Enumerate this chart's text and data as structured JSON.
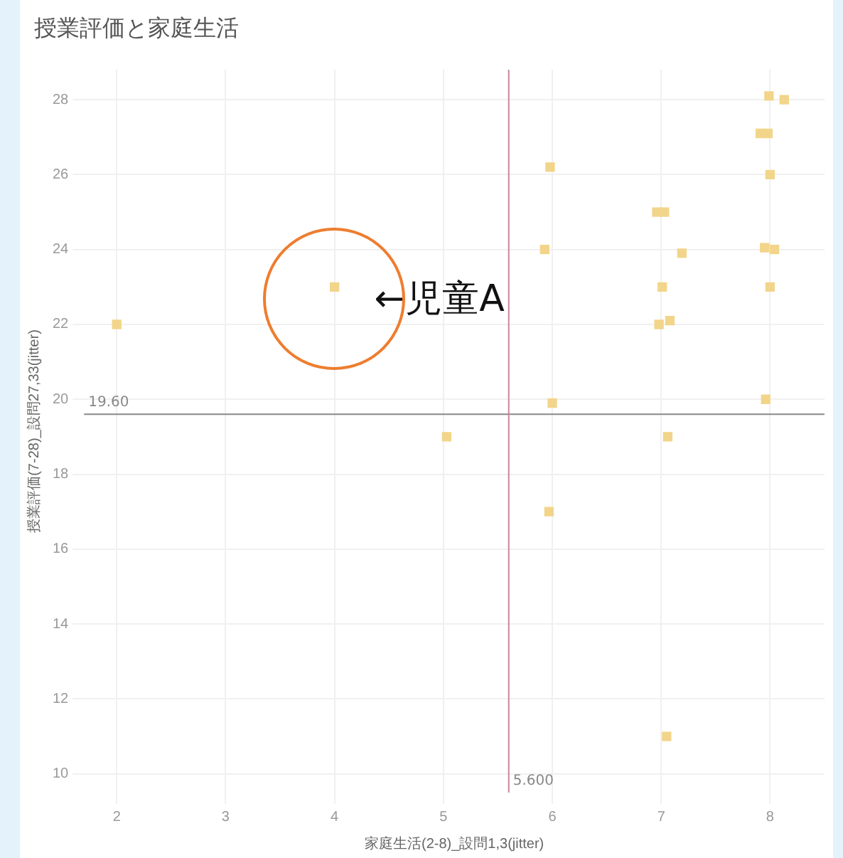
{
  "chart_data": {
    "type": "scatter",
    "title": "授業評価と家庭生活",
    "xlabel": "家庭生活(2-8)_設問1,3(jitter)",
    "ylabel": "授業評価(7-28)_設問27,33(jitter)",
    "x": [
      2,
      4,
      5.03,
      5.98,
      5.93,
      6,
      5.97,
      6.96,
      7.03,
      7.19,
      7.01,
      6.98,
      7.08,
      7.06,
      7.05,
      7.99,
      8.13,
      7.91,
      7.98,
      8,
      7.95,
      8.04,
      8,
      7.96
    ],
    "series": [
      {
        "color": "#f2d58a",
        "values": [
          22,
          23,
          19,
          26.2,
          24,
          19.9,
          17,
          25,
          25,
          23.9,
          23,
          22,
          22.1,
          19,
          11,
          28.1,
          28,
          27.1,
          27.1,
          26,
          24.05,
          24,
          23,
          20
        ]
      }
    ],
    "xlim": [
      1.7,
      8.5
    ],
    "ylim": [
      9.5,
      28.8
    ],
    "xticks": [
      2,
      3,
      4,
      5,
      6,
      7,
      8
    ],
    "yticks": [
      10,
      12,
      14,
      16,
      18,
      20,
      22,
      24,
      26,
      28
    ],
    "grid": true,
    "legend": false,
    "marker": "square",
    "ref_lines": [
      {
        "axis": "y",
        "value": 19.6,
        "label": "19.60",
        "color": "#888888"
      },
      {
        "axis": "x",
        "value": 5.6,
        "label": "5.600",
        "color": "#c9869a"
      }
    ],
    "annotations": [
      {
        "text": "←児童A",
        "x": 4,
        "y": 23
      }
    ]
  }
}
